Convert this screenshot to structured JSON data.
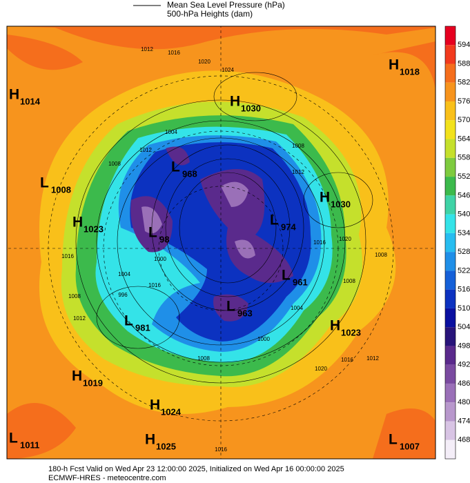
{
  "legend": {
    "lines": [
      "Mean Sea Level Pressure (hPa)",
      "500-hPa Heights (dam)"
    ]
  },
  "colorbar": {
    "labels": [
      594,
      588,
      582,
      576,
      570,
      564,
      558,
      552,
      546,
      540,
      534,
      528,
      522,
      516,
      510,
      504,
      498,
      492,
      486,
      480,
      474,
      468
    ],
    "colors": [
      "#e60020",
      "#f23a1e",
      "#f56e1c",
      "#f7941d",
      "#f9c01a",
      "#f2e21c",
      "#c5e02c",
      "#7ecb3f",
      "#3cba4c",
      "#3fd3a6",
      "#34e3e8",
      "#27bdf0",
      "#1f8fe8",
      "#1560d8",
      "#0c32c0",
      "#0a10a0",
      "#28147a",
      "#5a2a8c",
      "#7a4aa0",
      "#9a70b8",
      "#b898cc",
      "#d8c4e4",
      "#f4eef8"
    ]
  },
  "centers": [
    {
      "kind": "H",
      "value": "1018"
    },
    {
      "kind": "H",
      "value": "1014"
    },
    {
      "kind": "H",
      "value": "1030"
    },
    {
      "kind": "L",
      "value": "968"
    },
    {
      "kind": "L",
      "value": "1008"
    },
    {
      "kind": "H",
      "value": "1030"
    },
    {
      "kind": "H",
      "value": "1023"
    },
    {
      "kind": "L",
      "value": "974"
    },
    {
      "kind": "L",
      "value": "98"
    },
    {
      "kind": "L",
      "value": "961"
    },
    {
      "kind": "L",
      "value": "963"
    },
    {
      "kind": "L",
      "value": "981"
    },
    {
      "kind": "H",
      "value": "1023"
    },
    {
      "kind": "H",
      "value": "1019"
    },
    {
      "kind": "H",
      "value": "1024"
    },
    {
      "kind": "L",
      "value": "1011"
    },
    {
      "kind": "H",
      "value": "1025"
    },
    {
      "kind": "L",
      "value": "1007"
    }
  ],
  "isobar_labels": [
    1012,
    1016,
    1020,
    1024,
    1004,
    1012,
    1008,
    1008,
    1012,
    1016,
    1020,
    1008,
    1008,
    1016,
    1000,
    1004,
    1016,
    996,
    1008,
    1012,
    1004,
    1000,
    1020,
    1016,
    1012,
    1008,
    1016
  ],
  "footer": {
    "line1": "180-h Fcst Valid on Wed Apr 23 12:00:00 2025, Initialized on Wed Apr 16 00:00:00 2025",
    "line2": "ECMWF-HRES - meteocentre.com"
  }
}
